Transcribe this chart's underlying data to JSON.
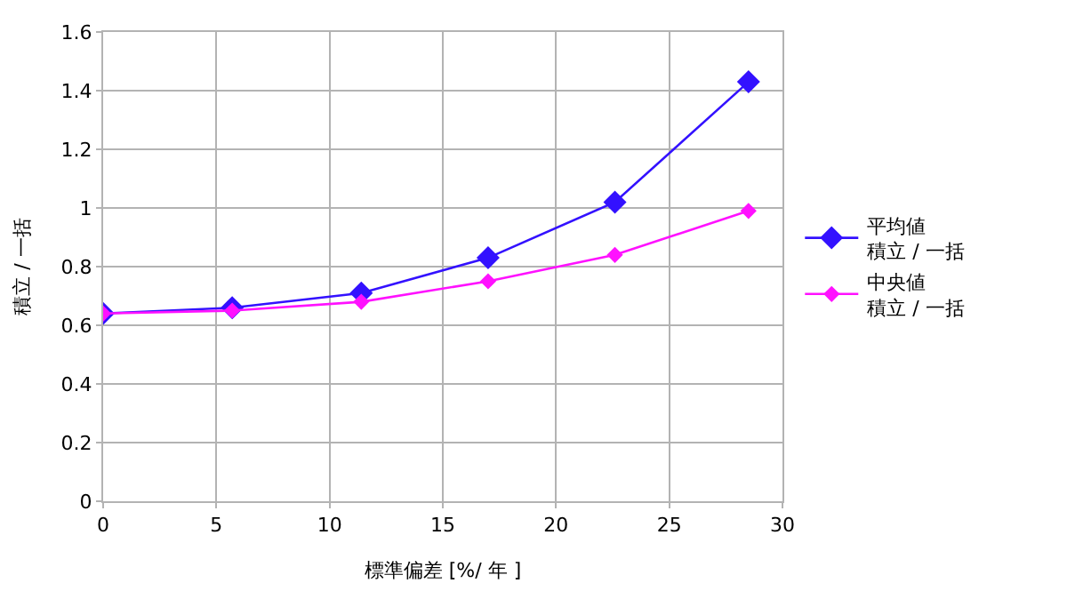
{
  "chart_data": {
    "type": "line",
    "xlabel": "標準偏差 [%/ 年 ]",
    "ylabel": "積立 / 一括",
    "x": [
      0,
      5.7,
      11.4,
      17,
      22.6,
      28.5
    ],
    "series": [
      {
        "name": "平均値積立 / 一括",
        "color": "#3311ff",
        "values": [
          0.64,
          0.66,
          0.71,
          0.83,
          1.02,
          1.43
        ]
      },
      {
        "name": "中央値積立 / 一括",
        "color": "#ff11ff",
        "values": [
          0.64,
          0.65,
          0.68,
          0.75,
          0.84,
          0.99
        ]
      }
    ],
    "xlim": [
      0,
      30
    ],
    "xticks": [
      0,
      5,
      10,
      15,
      20,
      25,
      30
    ],
    "ylim": [
      0,
      1.6
    ],
    "yticks": [
      0,
      0.2,
      0.4,
      0.6,
      0.8,
      1,
      1.2,
      1.4,
      1.6
    ],
    "grid": true,
    "legend": "right",
    "marker": "diamond",
    "line_style": "solid"
  }
}
